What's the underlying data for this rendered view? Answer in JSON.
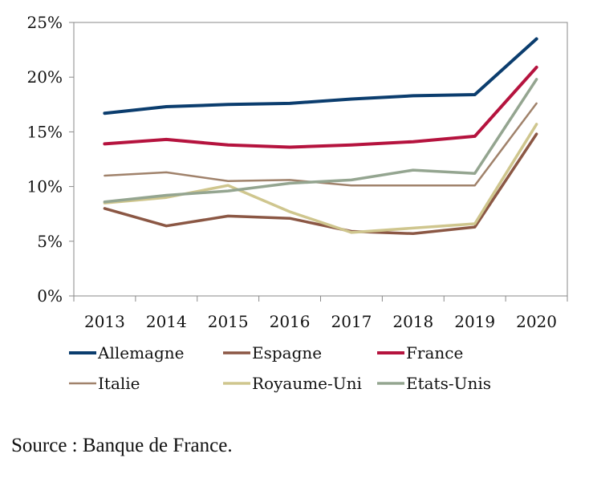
{
  "chart_data": {
    "type": "line",
    "x": [
      "2013",
      "2014",
      "2015",
      "2016",
      "2017",
      "2018",
      "2019",
      "2020"
    ],
    "y_ticks": [
      "0%",
      "5%",
      "10%",
      "15%",
      "20%",
      "25%"
    ],
    "ylim": [
      0,
      25
    ],
    "grid": false,
    "legend_position": "bottom",
    "series": [
      {
        "name": "Allemagne",
        "color": "#0b3d6e",
        "width": "thick",
        "values": [
          16.7,
          17.3,
          17.5,
          17.6,
          18.0,
          18.3,
          18.4,
          23.5
        ]
      },
      {
        "name": "Espagne",
        "color": "#8b5744",
        "width": "medium",
        "values": [
          8.0,
          6.4,
          7.3,
          7.1,
          5.9,
          5.7,
          6.3,
          14.8
        ]
      },
      {
        "name": "France",
        "color": "#b5133e",
        "width": "thick",
        "values": [
          13.9,
          14.3,
          13.8,
          13.6,
          13.8,
          14.1,
          14.6,
          20.9
        ]
      },
      {
        "name": "Italie",
        "color": "#a0826b",
        "width": "thin",
        "values": [
          11.0,
          11.3,
          10.5,
          10.6,
          10.1,
          10.1,
          10.1,
          17.6
        ]
      },
      {
        "name": "Royaume-Uni",
        "color": "#cfc68e",
        "width": "medium",
        "values": [
          8.5,
          9.0,
          10.1,
          7.7,
          5.8,
          6.2,
          6.6,
          15.7
        ]
      },
      {
        "name": "Etats-Unis",
        "color": "#94a590",
        "width": "medium",
        "values": [
          8.6,
          9.2,
          9.6,
          10.3,
          10.6,
          11.5,
          11.2,
          19.8
        ]
      }
    ]
  },
  "source": "Source : Banque de France."
}
